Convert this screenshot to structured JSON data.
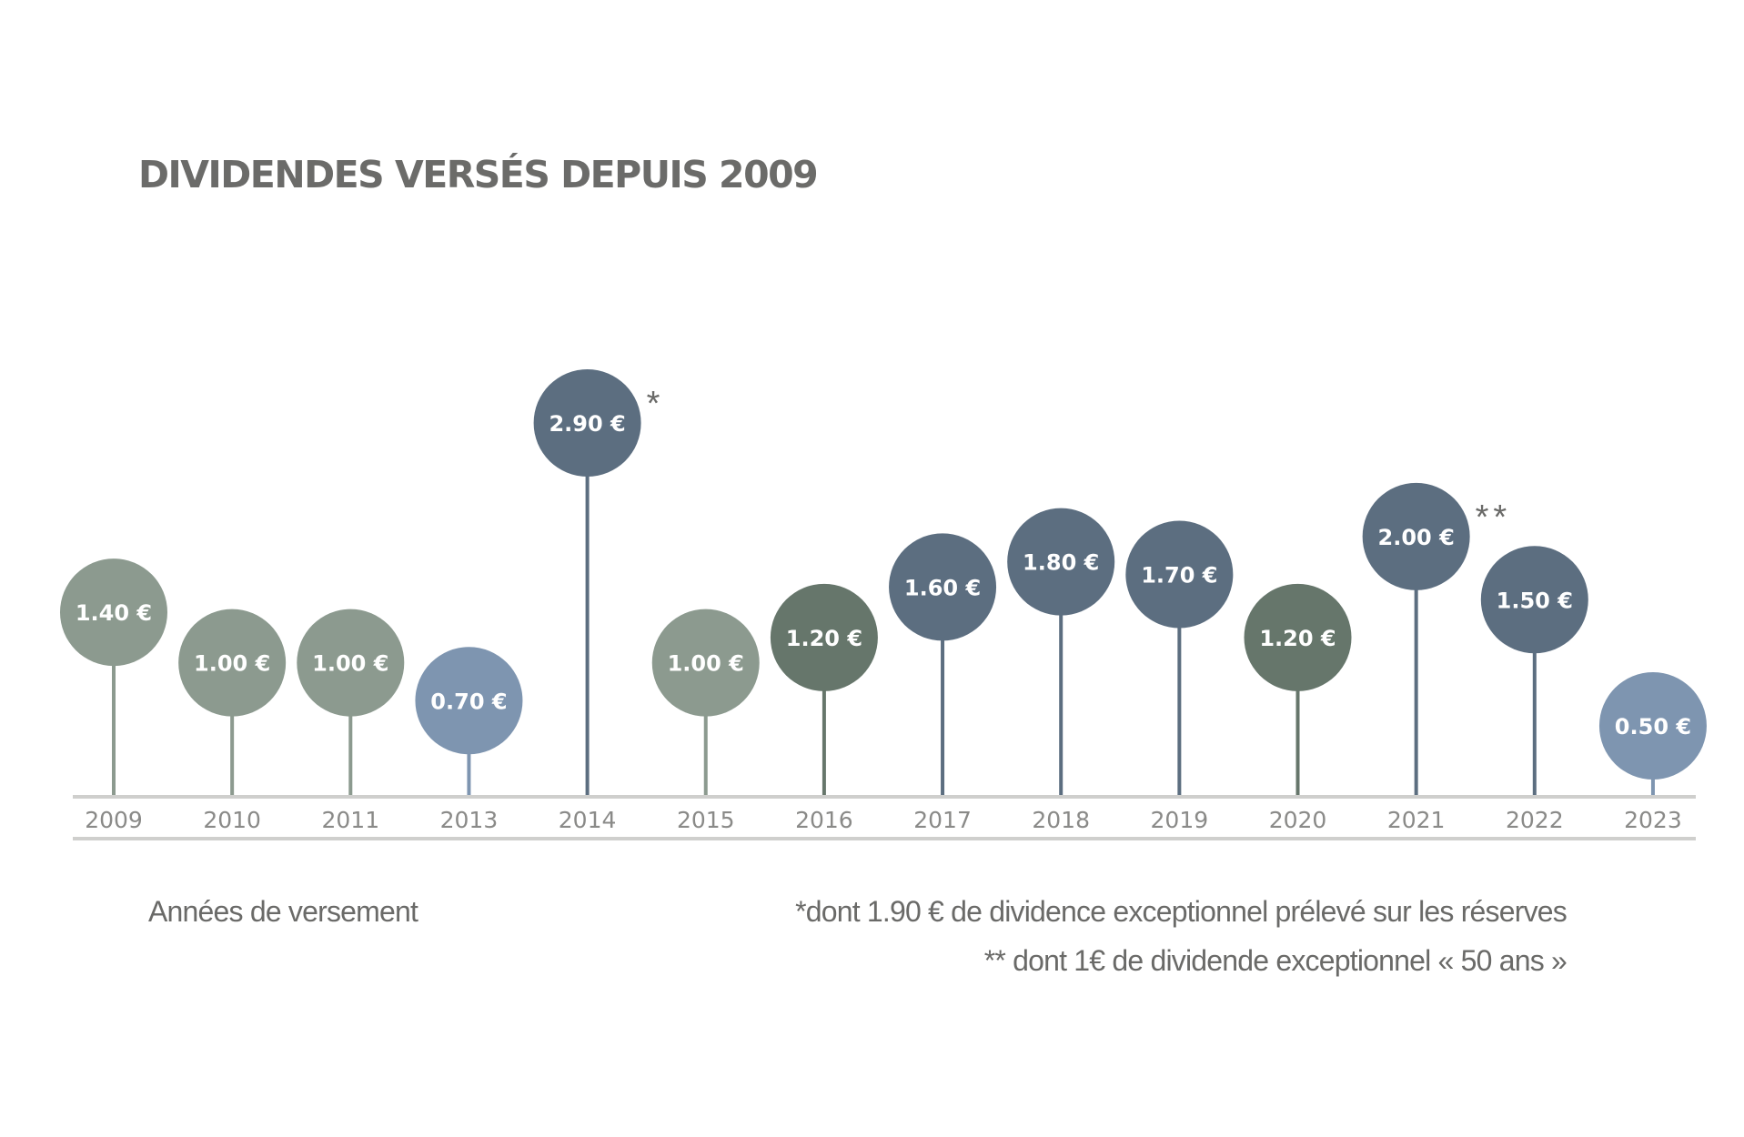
{
  "chart_data": {
    "type": "lollipop",
    "title": "DIVIDENDES VERSÉS DEPUIS 2009",
    "xlabel": "Années de versement",
    "ylabel": "",
    "categories": [
      "2009",
      "2010",
      "2011",
      "2013",
      "2014",
      "2015",
      "2016",
      "2017",
      "2018",
      "2019",
      "2020",
      "2021",
      "2022",
      "2023"
    ],
    "values": [
      1.4,
      1.0,
      1.0,
      0.7,
      2.9,
      1.0,
      1.2,
      1.6,
      1.8,
      1.7,
      1.2,
      2.0,
      1.5,
      0.5
    ],
    "value_labels": [
      "1.40 €",
      "1.00 €",
      "1.00 €",
      "0.70 €",
      "2.90 €",
      "1.00 €",
      "1.20 €",
      "1.60 €",
      "1.80 €",
      "1.70 €",
      "1.20 €",
      "2.00 €",
      "1.50 €",
      "0.50 €"
    ],
    "markers": [
      "",
      "",
      "",
      "",
      "*",
      "",
      "",
      "",
      "",
      "",
      "",
      "**",
      "",
      ""
    ],
    "colors": [
      "#8c9a8f",
      "#8c9a8f",
      "#8c9a8f",
      "#7e95b0",
      "#5c6e80",
      "#8c9a8f",
      "#66766b",
      "#5c6e80",
      "#5c6e80",
      "#5c6e80",
      "#66766b",
      "#5c6e80",
      "#5c6e80",
      "#7e95b0"
    ],
    "footnotes": [
      "*dont 1.90 € de dividence exceptionnel prélevé sur les réserves",
      "** dont 1€ de dividende exceptionnel « 50 ans »"
    ],
    "legend": "none",
    "grid": false
  }
}
